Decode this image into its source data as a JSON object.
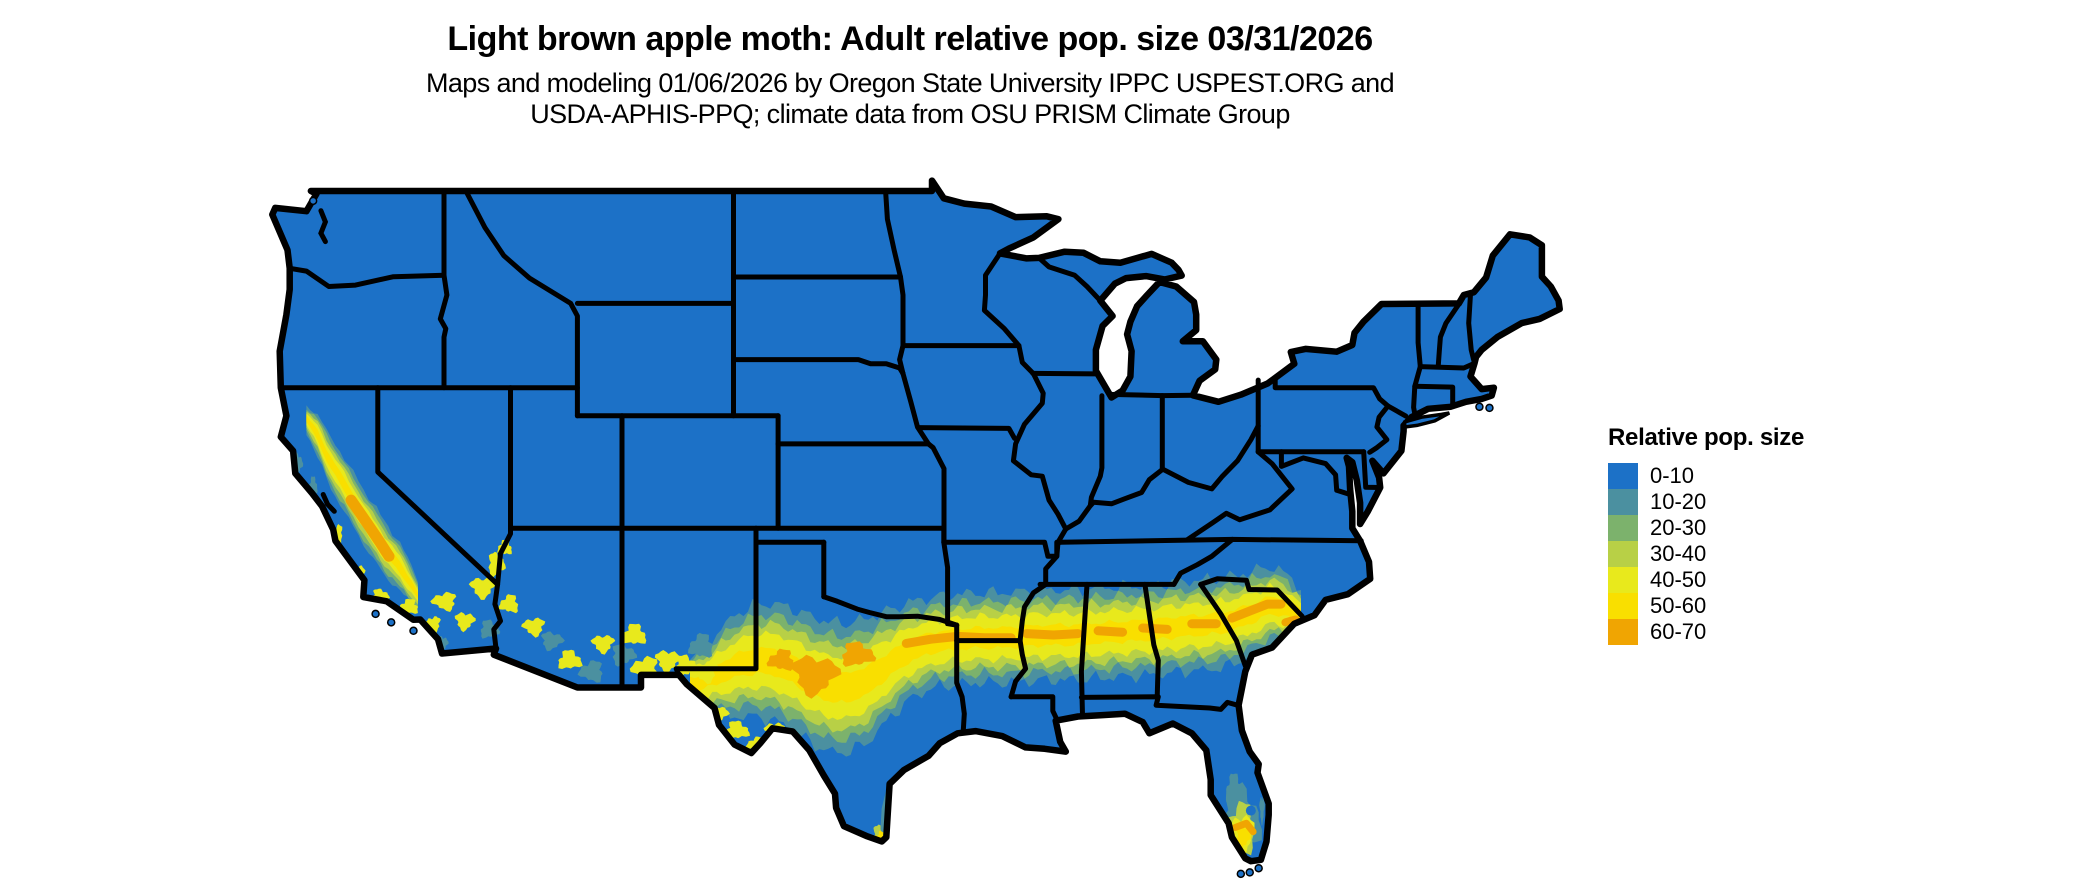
{
  "header": {
    "title": "Light brown apple moth: Adult relative pop. size 03/31/2026",
    "subtitle_line1": "Maps and modeling 01/06/2026 by Oregon State University IPPC USPEST.ORG and",
    "subtitle_line2": "USDA-APHIS-PPQ; climate data from OSU PRISM Climate Group"
  },
  "legend": {
    "title": "Relative pop. size",
    "items": [
      {
        "label": "0-10",
        "color": "#1c71c7"
      },
      {
        "label": "10-20",
        "color": "#4b90a0"
      },
      {
        "label": "20-30",
        "color": "#7cb26c"
      },
      {
        "label": "30-40",
        "color": "#b8d046"
      },
      {
        "label": "40-50",
        "color": "#e8e91c"
      },
      {
        "label": "50-60",
        "color": "#f9df00"
      },
      {
        "label": "60-70",
        "color": "#f0a502"
      }
    ]
  },
  "map": {
    "region": "Contiguous United States",
    "ocean_color": "#ffffff",
    "border_color": "#000000",
    "base_color": "#1c71c7",
    "elevated_regions": [
      "California Central Valley and coastal ranges",
      "Southern band from west Texas through the Gulf states to the Carolinas coast",
      "Scattered southern Arizona and New Mexico",
      "South Florida",
      "Southern tip of Texas"
    ]
  },
  "chart_data": {
    "type": "heatmap",
    "title": "Light brown apple moth: Adult relative pop. size 03/31/2026",
    "legend_title": "Relative pop. size",
    "bins": [
      "0-10",
      "10-20",
      "20-30",
      "30-40",
      "40-50",
      "50-60",
      "60-70"
    ],
    "bin_colors": [
      "#1c71c7",
      "#4b90a0",
      "#7cb26c",
      "#b8d046",
      "#e8e91c",
      "#f9df00",
      "#f0a502"
    ],
    "legend_position": "right",
    "notes": "Raster map of relative population size over the contiguous US; values 60-70 occur in the California Central Valley, central Texas and along an east-west band near latitude 33N; most of the US is in bin 0-10"
  }
}
